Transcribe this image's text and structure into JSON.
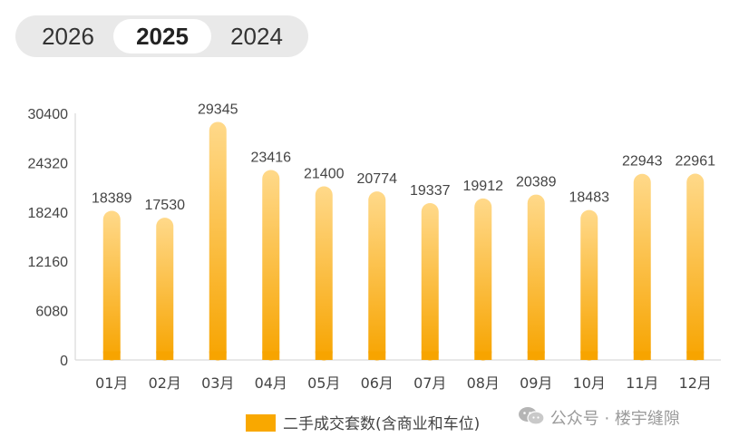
{
  "year_tabs": [
    {
      "label": "2026",
      "active": false
    },
    {
      "label": "2025",
      "active": true
    },
    {
      "label": "2024",
      "active": false
    }
  ],
  "watermark": {
    "text": "公众号 · 楼宇缝隙",
    "icon": "wechat-icon"
  },
  "colors": {
    "bar_top": "#ffd98a",
    "bar_bottom": "#f7a400",
    "legend": "#f9a800",
    "grid": "#d9d9d9"
  },
  "chart_data": {
    "type": "bar",
    "categories": [
      "01月",
      "02月",
      "03月",
      "04月",
      "05月",
      "06月",
      "07月",
      "08月",
      "09月",
      "10月",
      "11月",
      "12月"
    ],
    "series": [
      {
        "name": "二手成交套数(含商业和车位)",
        "values": [
          18389,
          17530,
          29345,
          23416,
          21400,
          20774,
          19337,
          19912,
          20389,
          18483,
          22943,
          22961
        ]
      }
    ],
    "data_labels": [
      "18389",
      "17530",
      "29345",
      "23416",
      "21400",
      "20774",
      "19337",
      "19912",
      "20389",
      "18483",
      "22943",
      "22961"
    ],
    "ylim": [
      0,
      30400
    ],
    "yticks": [
      0,
      6080,
      12160,
      18240,
      24320,
      30400
    ],
    "ytick_labels": [
      "0",
      "6080",
      "12160",
      "18240",
      "24320",
      "30400"
    ],
    "legend_position": "bottom",
    "grid": false,
    "title": "",
    "xlabel": "",
    "ylabel": ""
  }
}
